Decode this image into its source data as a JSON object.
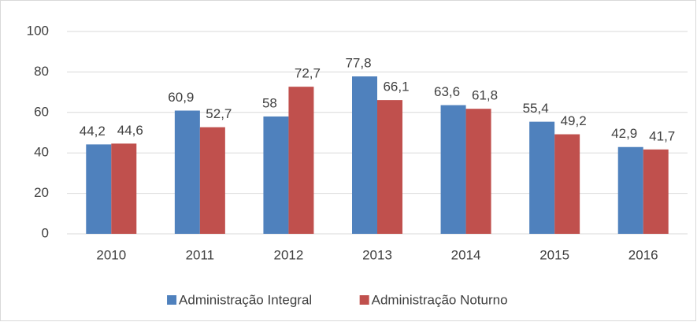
{
  "chart_data": {
    "type": "bar",
    "categories": [
      "2010",
      "2011",
      "2012",
      "2013",
      "2014",
      "2015",
      "2016"
    ],
    "series": [
      {
        "name": "Administração Integral",
        "color": "#4f81bd",
        "values": [
          44.2,
          60.9,
          58,
          77.8,
          63.6,
          55.4,
          42.9
        ],
        "value_labels": [
          "44,2",
          "60,9",
          "58",
          "77,8",
          "63,6",
          "55,4",
          "42,9"
        ]
      },
      {
        "name": "Administração Noturno",
        "color": "#c0504d",
        "values": [
          44.6,
          52.7,
          72.7,
          66.1,
          61.8,
          49.2,
          41.7
        ],
        "value_labels": [
          "44,6",
          "52,7",
          "72,7",
          "66,1",
          "61,8",
          "49,2",
          "41,7"
        ]
      }
    ],
    "ylim": [
      0,
      100
    ],
    "yticks": [
      0,
      20,
      40,
      60,
      80,
      100
    ],
    "grid": true
  }
}
